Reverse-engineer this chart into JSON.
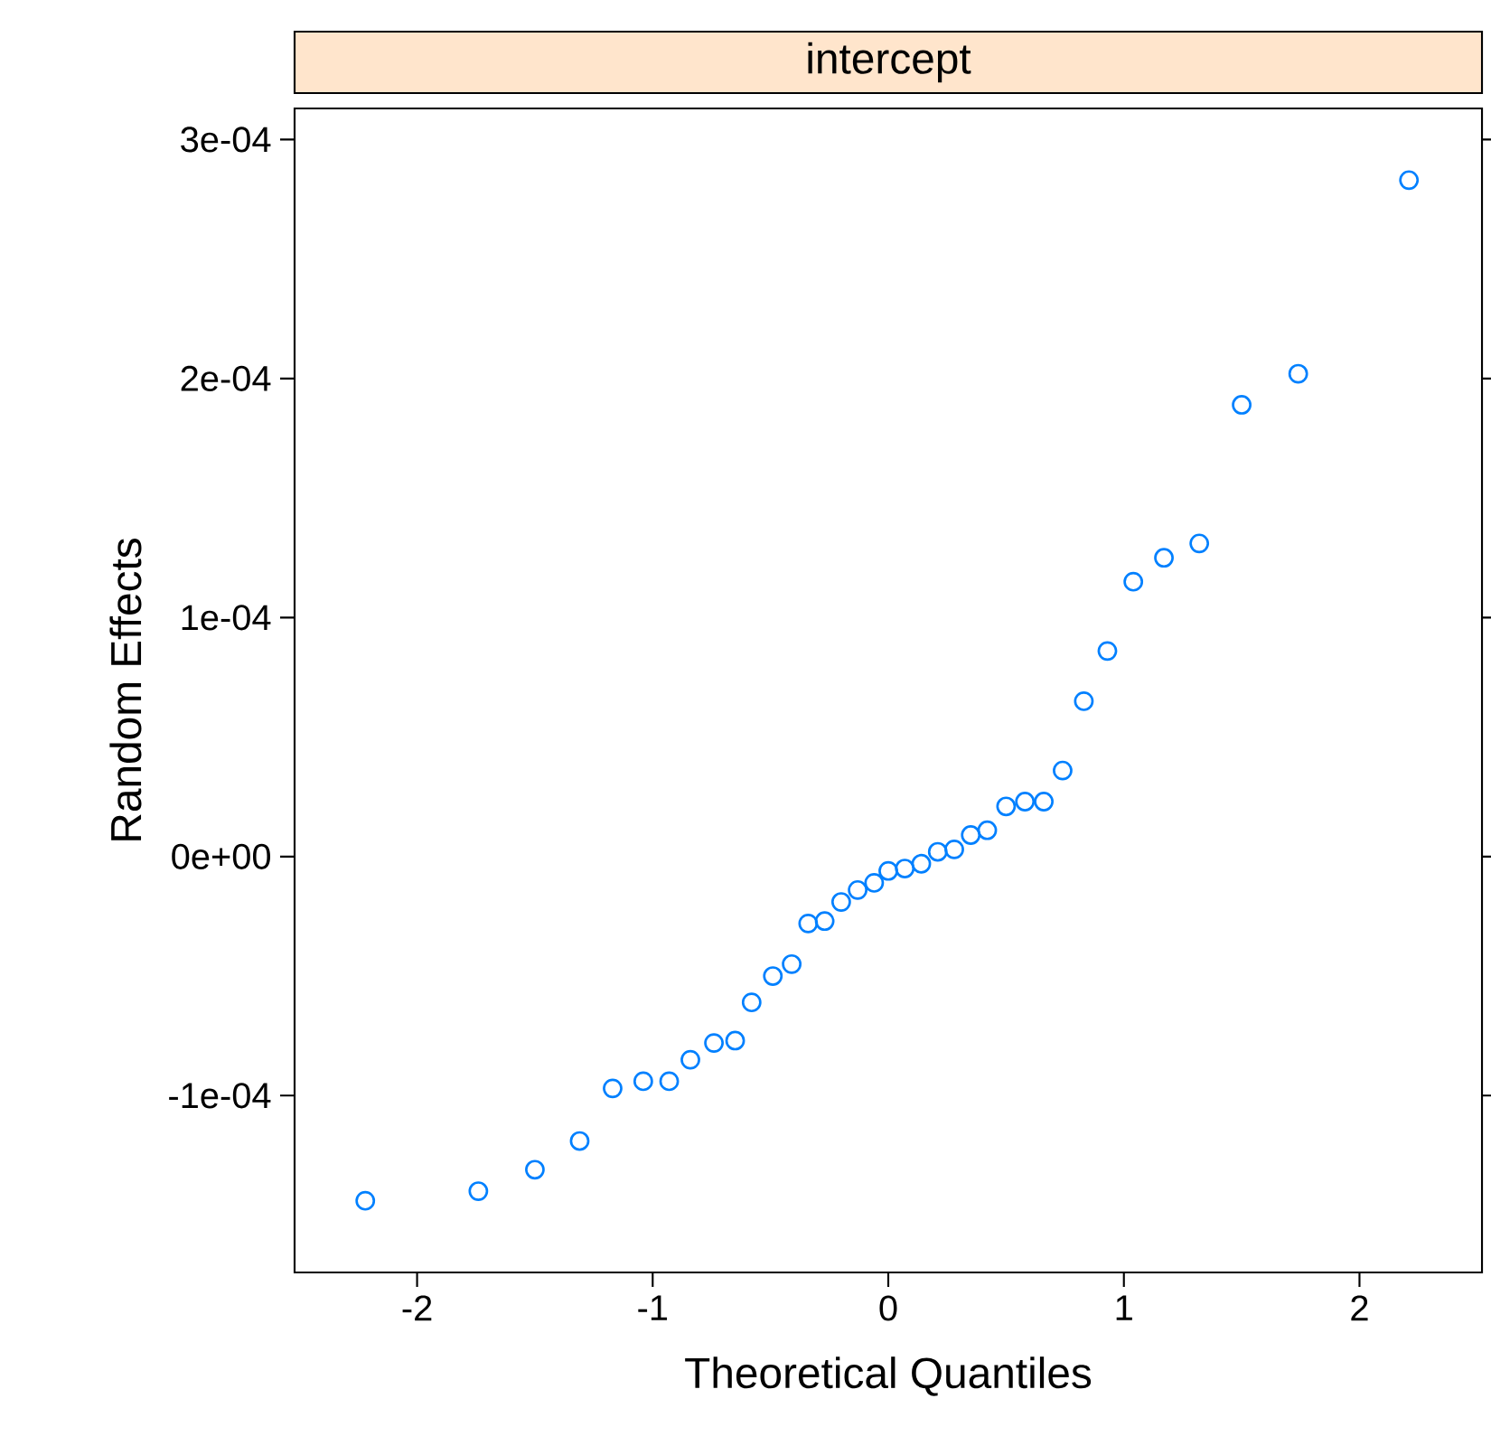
{
  "chart_data": {
    "type": "scatter",
    "title": "intercept",
    "xlabel": "Theoretical Quantiles",
    "ylabel": "Random Effects",
    "color": "#0080ff",
    "marker": "circle",
    "xlim": [
      -2.52,
      2.52
    ],
    "ylim": [
      -0.000174,
      0.000313
    ],
    "xticks": [
      -2,
      -1,
      0,
      1,
      2
    ],
    "yticks": [
      {
        "value": -0.0001,
        "label": "-1e-04"
      },
      {
        "value": 0,
        "label": "0e+00"
      },
      {
        "value": 0.0001,
        "label": "1e-04"
      },
      {
        "value": 0.0002,
        "label": "2e-04"
      },
      {
        "value": 0.0003,
        "label": "3e-04"
      }
    ],
    "x": [
      -2.22,
      -1.74,
      -1.5,
      -1.31,
      -1.17,
      -1.04,
      -0.93,
      -0.84,
      -0.74,
      -0.65,
      -0.58,
      -0.49,
      -0.41,
      -0.34,
      -0.27,
      -0.2,
      -0.13,
      -0.06,
      0.0,
      0.07,
      0.14,
      0.21,
      0.28,
      0.35,
      0.42,
      0.5,
      0.58,
      0.66,
      0.74,
      0.83,
      0.93,
      1.04,
      1.17,
      1.32,
      1.5,
      1.74,
      2.21
    ],
    "values": [
      -0.000144,
      -0.00014,
      -0.000131,
      -0.000119,
      -9.7e-05,
      -9.4e-05,
      -9.4e-05,
      -8.5e-05,
      -7.8e-05,
      -7.7e-05,
      -6.1e-05,
      -5e-05,
      -4.5e-05,
      -2.8e-05,
      -2.7e-05,
      -1.9e-05,
      -1.4e-05,
      -1.1e-05,
      -6e-06,
      -5e-06,
      -3e-06,
      2e-06,
      3e-06,
      9e-06,
      1.1e-05,
      2.1e-05,
      2.3e-05,
      2.3e-05,
      3.6e-05,
      6.5e-05,
      8.6e-05,
      0.000115,
      0.000125,
      0.000131,
      0.000189,
      0.000202,
      0.000283
    ]
  }
}
